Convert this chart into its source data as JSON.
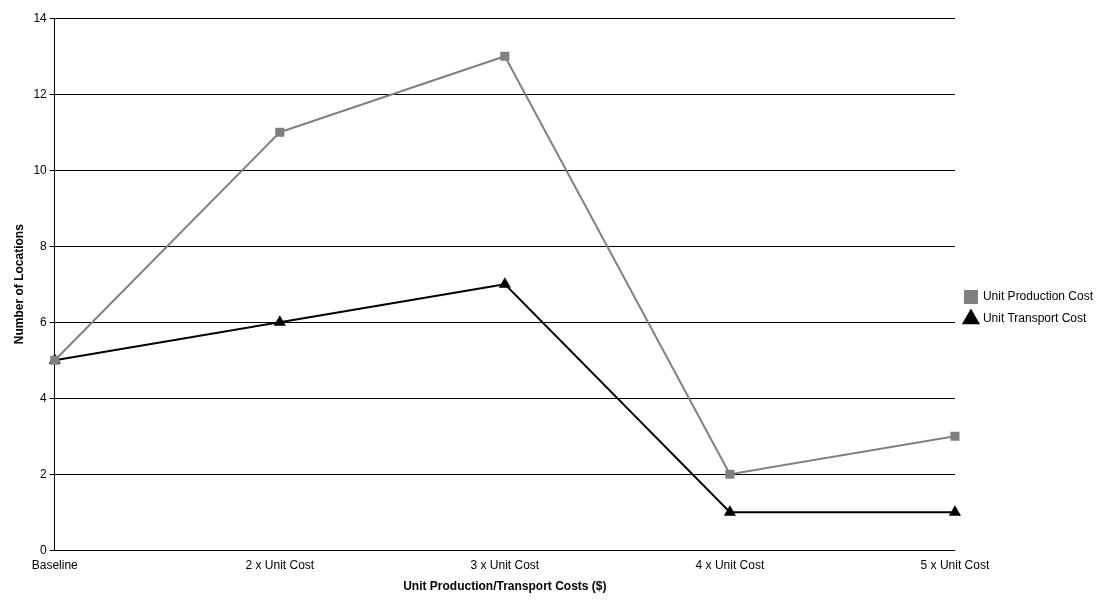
{
  "chart_data": {
    "type": "line",
    "xlabel": "Unit Production/Transport Costs ($)",
    "ylabel": "Number of Locations",
    "categories": [
      "Baseline",
      "2 x Unit Cost",
      "3 x Unit Cost",
      "4 x Unit Cost",
      "5 x Unit Cost"
    ],
    "series": [
      {
        "name": "Unit Transport Cost",
        "color": "#000000",
        "marker": "triangle",
        "values": [
          5,
          6,
          7,
          1,
          1
        ]
      },
      {
        "name": "Unit Production Cost",
        "color": "#808080",
        "marker": "square",
        "values": [
          5,
          11,
          13,
          2,
          3
        ]
      }
    ],
    "ylim": [
      0,
      14
    ],
    "yticks": [
      0,
      2,
      4,
      6,
      8,
      10,
      12,
      14
    ],
    "grid": "y",
    "legend": "right",
    "line_style": "solid"
  }
}
